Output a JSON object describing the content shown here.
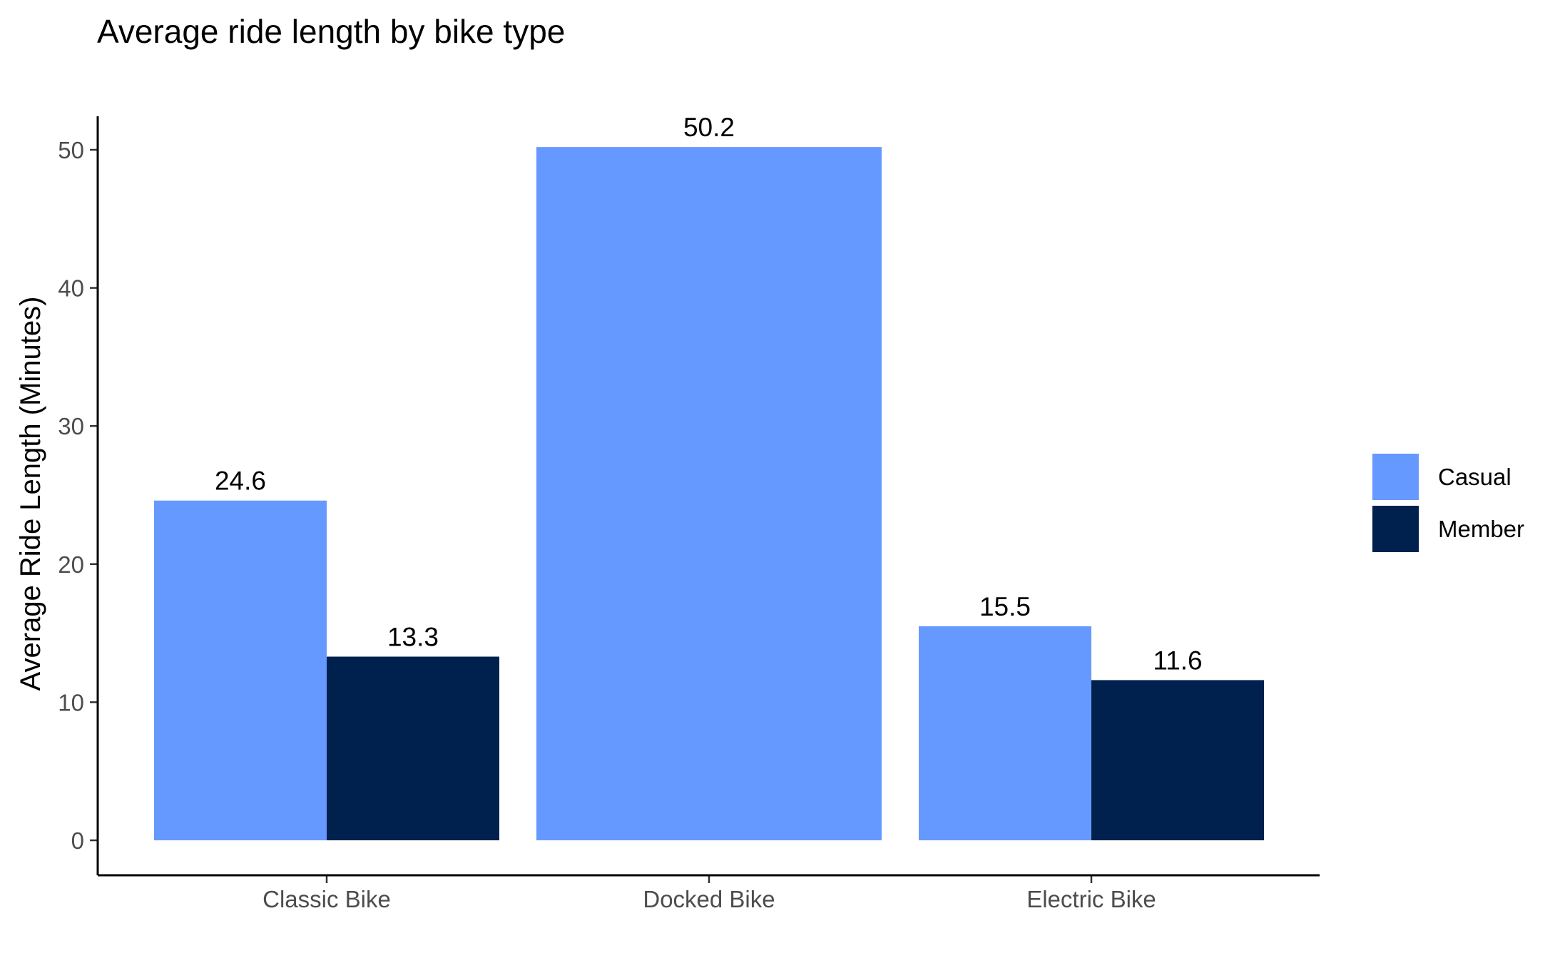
{
  "chart_data": {
    "type": "bar",
    "title": "Average ride length by bike type",
    "xlabel": "",
    "ylabel": "Average Ride Length (Minutes)",
    "categories": [
      "Classic Bike",
      "Docked Bike",
      "Electric Bike"
    ],
    "series": [
      {
        "name": "Casual",
        "color": "#6699ff",
        "values": [
          24.6,
          50.2,
          15.5
        ]
      },
      {
        "name": "Member",
        "color": "#00214d",
        "values": [
          13.3,
          null,
          11.6
        ]
      }
    ],
    "yticks": [
      0,
      10,
      20,
      30,
      40,
      50
    ],
    "ylim": [
      0,
      52.5
    ],
    "grid": false,
    "legend_position": "right",
    "data_labels": true
  }
}
